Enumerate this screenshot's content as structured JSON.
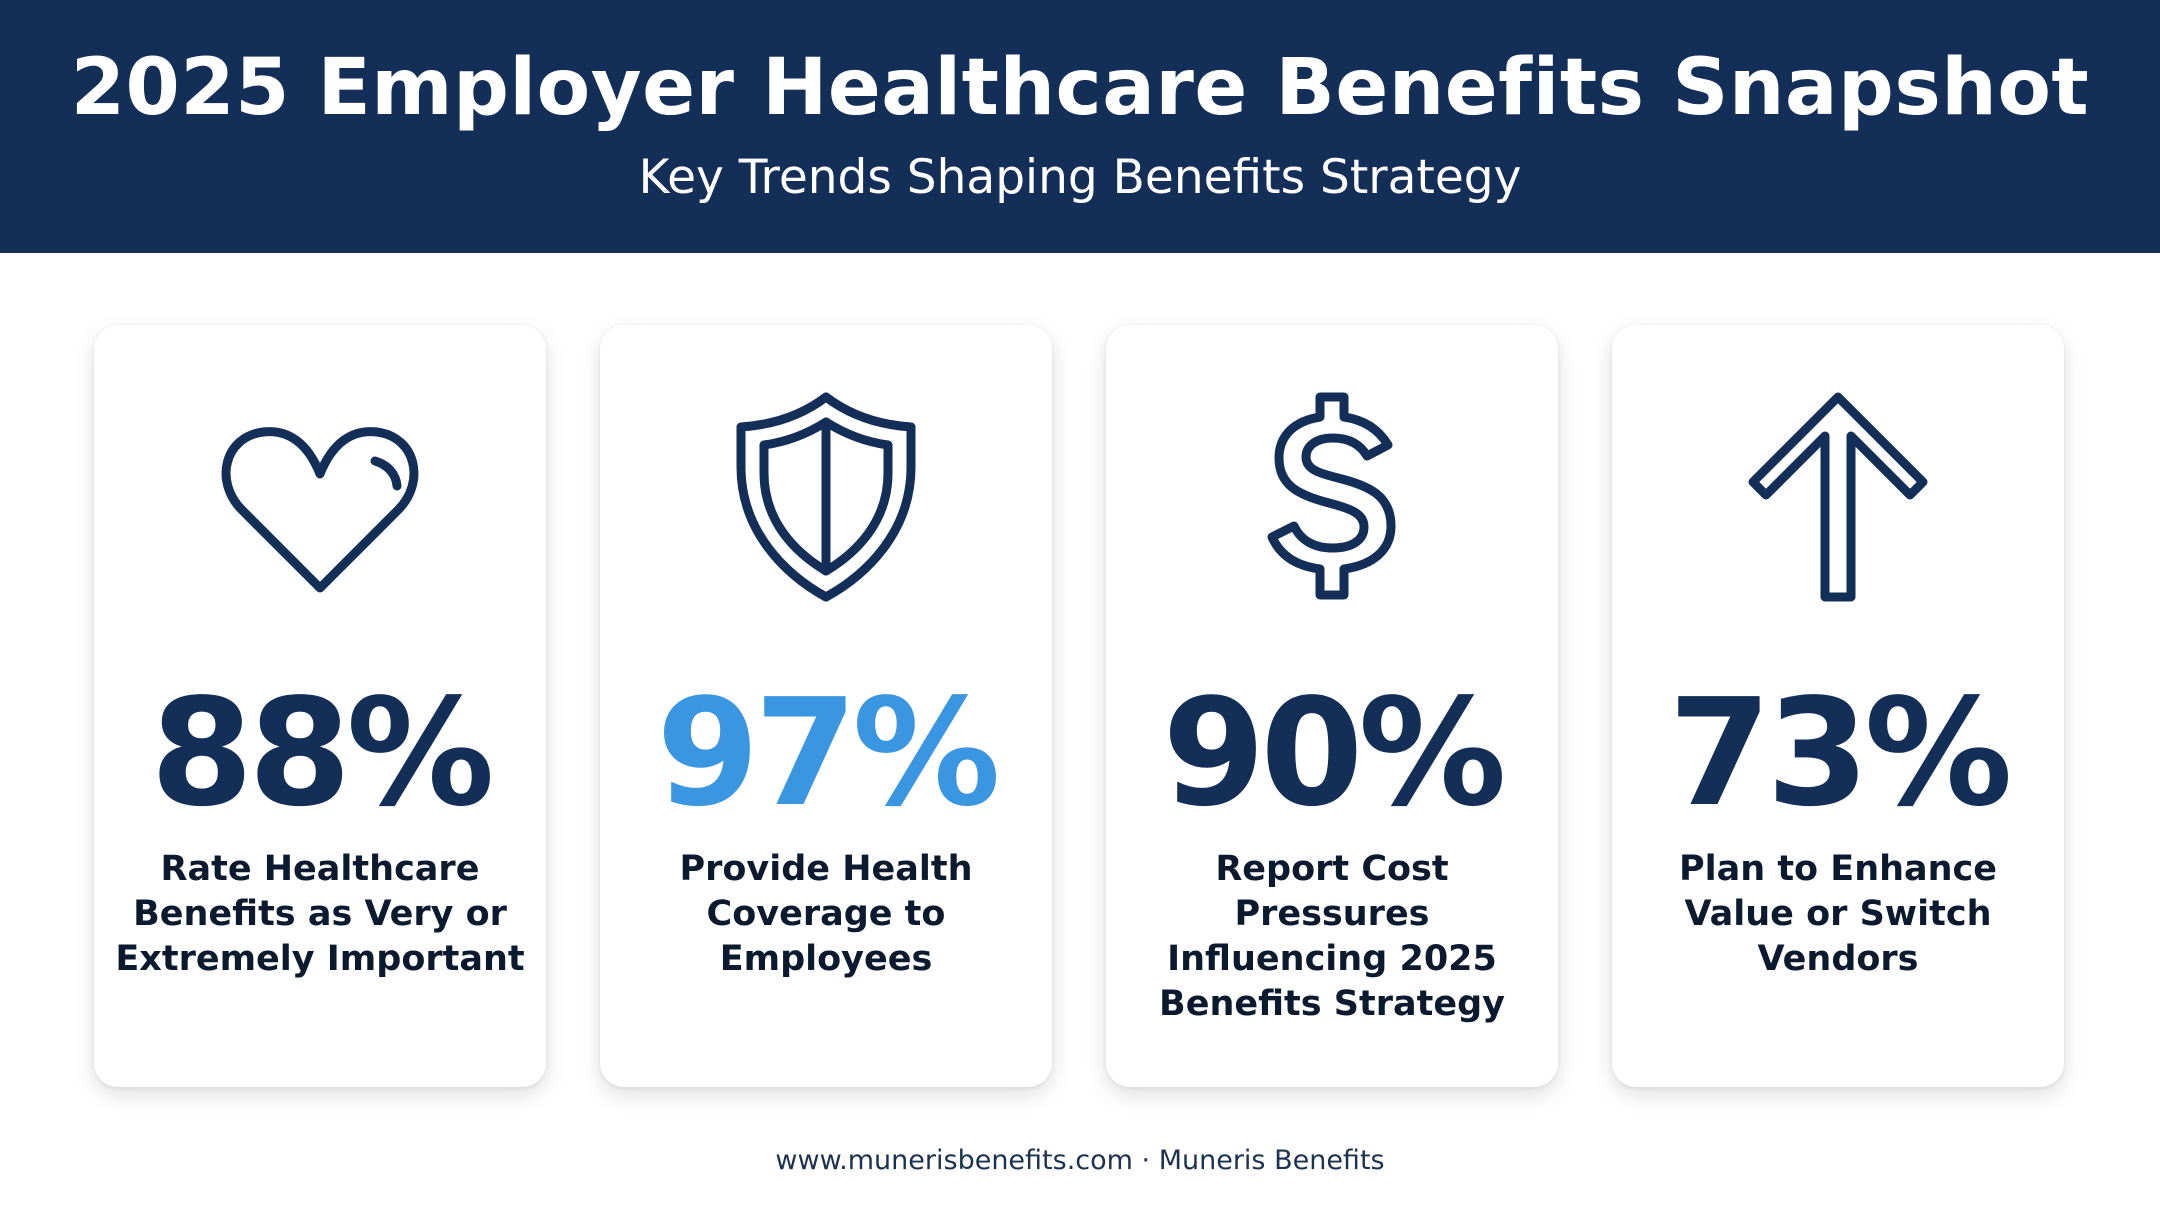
{
  "header": {
    "title": "2025 Employer Healthcare Benefits Snapshot",
    "subtitle": "Key Trends Shaping Benefits Strategy"
  },
  "colors": {
    "header_background": "#132f57",
    "navy": "#132f57",
    "accent_blue": "#3b96e2"
  },
  "cards": [
    {
      "icon": "heart-icon",
      "value": "88%",
      "value_color": "#132f57",
      "label": "Rate Healthcare Benefits as Very or Extremely Important"
    },
    {
      "icon": "shield-icon",
      "value": "97%",
      "value_color": "#3b96e2",
      "label": "Provide Health Coverage to Employees"
    },
    {
      "icon": "dollar-icon",
      "value": "90%",
      "value_color": "#132f57",
      "label": "Report Cost Pressures Influencing 2025 Benefits Strategy"
    },
    {
      "icon": "arrow-up-icon",
      "value": "73%",
      "value_color": "#132f57",
      "label": "Plan to Enhance Value or Switch Vendors"
    }
  ],
  "footer": {
    "text": "www.munerisbenefits.com · Muneris Benefits"
  }
}
